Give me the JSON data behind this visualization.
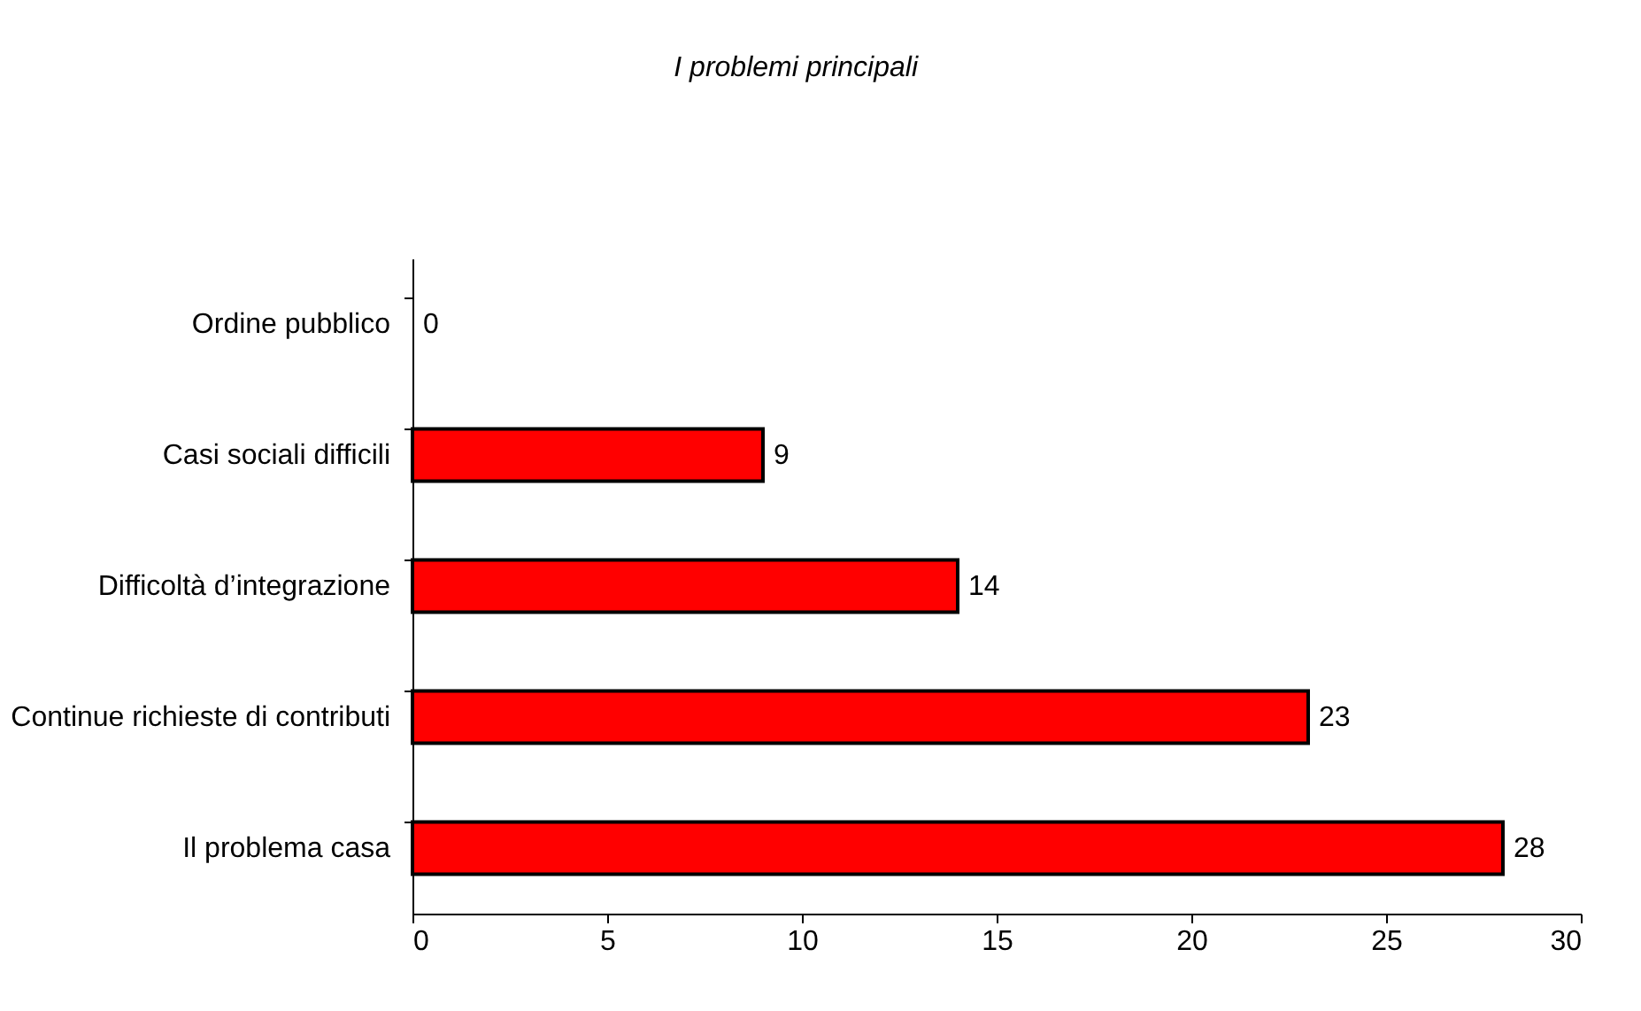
{
  "chart_data": {
    "type": "bar",
    "orientation": "horizontal",
    "title": "I problemi principali",
    "categories": [
      "Ordine pubblico",
      "Casi sociali difficili",
      "Difficoltà d’integrazione",
      "Continue richieste di contributi",
      "Il problema casa"
    ],
    "values": [
      0,
      9,
      14,
      23,
      28
    ],
    "color": "#ff0000",
    "xlim": [
      0,
      30
    ],
    "xticks": [
      0,
      5,
      10,
      15,
      20,
      25,
      30
    ],
    "grid": false,
    "data_labels": true
  }
}
